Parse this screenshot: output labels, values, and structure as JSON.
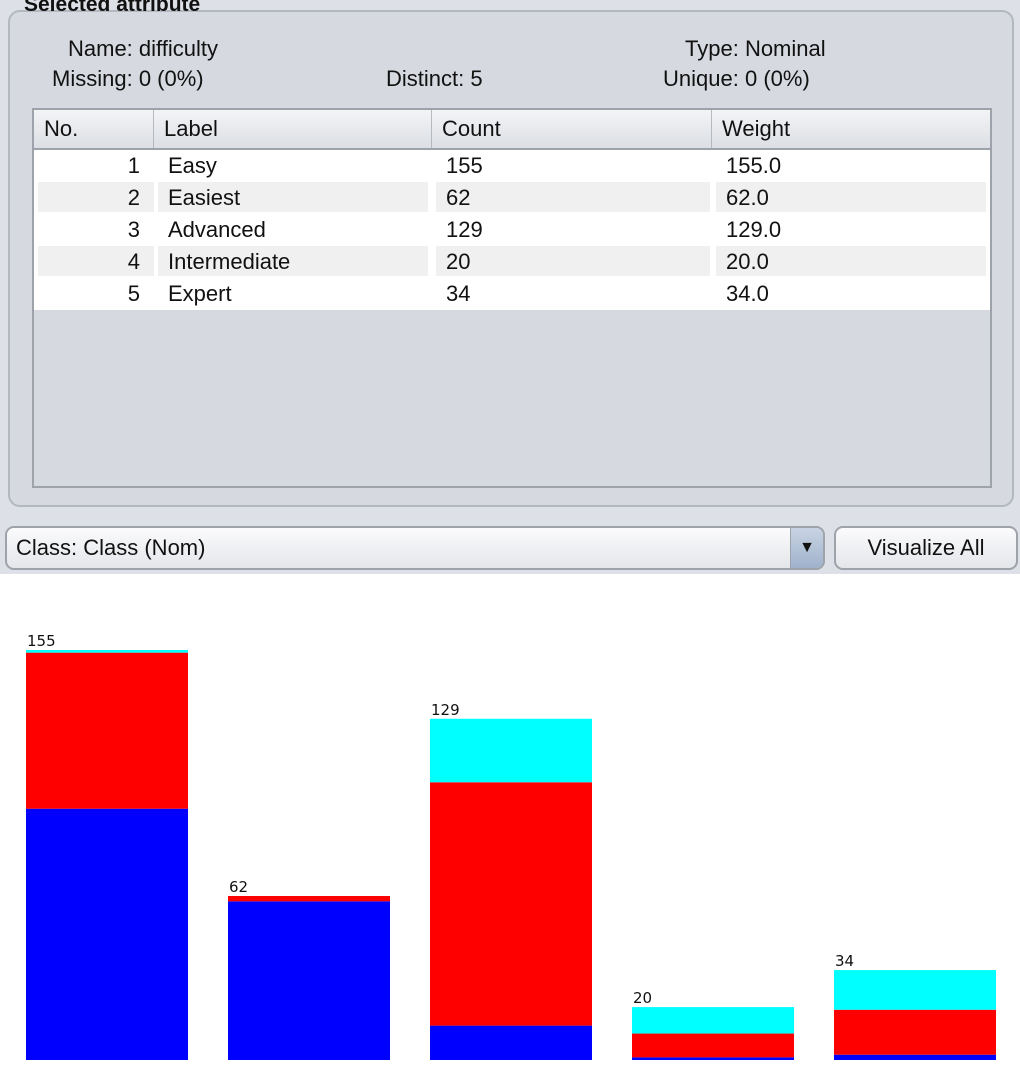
{
  "panel": {
    "title": "Selected attribute",
    "name_label": "Name:",
    "name_value": "difficulty",
    "type_label": "Type:",
    "type_value": "Nominal",
    "missing_label": "Missing:",
    "missing_value": "0 (0%)",
    "distinct_label": "Distinct:",
    "distinct_value": "5",
    "unique_label": "Unique:",
    "unique_value": "0 (0%)"
  },
  "table": {
    "headers": [
      "No.",
      "Label",
      "Count",
      "Weight"
    ],
    "rows": [
      {
        "no": "1",
        "label": "Easy",
        "count": "155",
        "weight": "155.0"
      },
      {
        "no": "2",
        "label": "Easiest",
        "count": "62",
        "weight": "62.0"
      },
      {
        "no": "3",
        "label": "Advanced",
        "count": "129",
        "weight": "129.0"
      },
      {
        "no": "4",
        "label": "Intermediate",
        "count": "20",
        "weight": "20.0"
      },
      {
        "no": "5",
        "label": "Expert",
        "count": "34",
        "weight": "34.0"
      }
    ]
  },
  "class_select": {
    "value": "Class: Class (Nom)",
    "arrow_icon": "chevron-down-icon"
  },
  "visualize_button": {
    "label": "Visualize All"
  },
  "colors": {
    "blue": "#0000ff",
    "red": "#ff0000",
    "cyan": "#00ffff"
  },
  "chart_data": {
    "type": "bar",
    "stacked": true,
    "categories": [
      "Easy",
      "Easiest",
      "Advanced",
      "Intermediate",
      "Expert"
    ],
    "totals": [
      155,
      62,
      129,
      20,
      34
    ],
    "series": [
      {
        "color": "#0000ff",
        "values": [
          95,
          60,
          13,
          1,
          2
        ]
      },
      {
        "color": "#ff0000",
        "values": [
          59,
          2,
          92,
          9,
          17
        ]
      },
      {
        "color": "#00ffff",
        "values": [
          1,
          0,
          24,
          10,
          15
        ]
      }
    ],
    "ylim": [
      0,
      155
    ]
  }
}
